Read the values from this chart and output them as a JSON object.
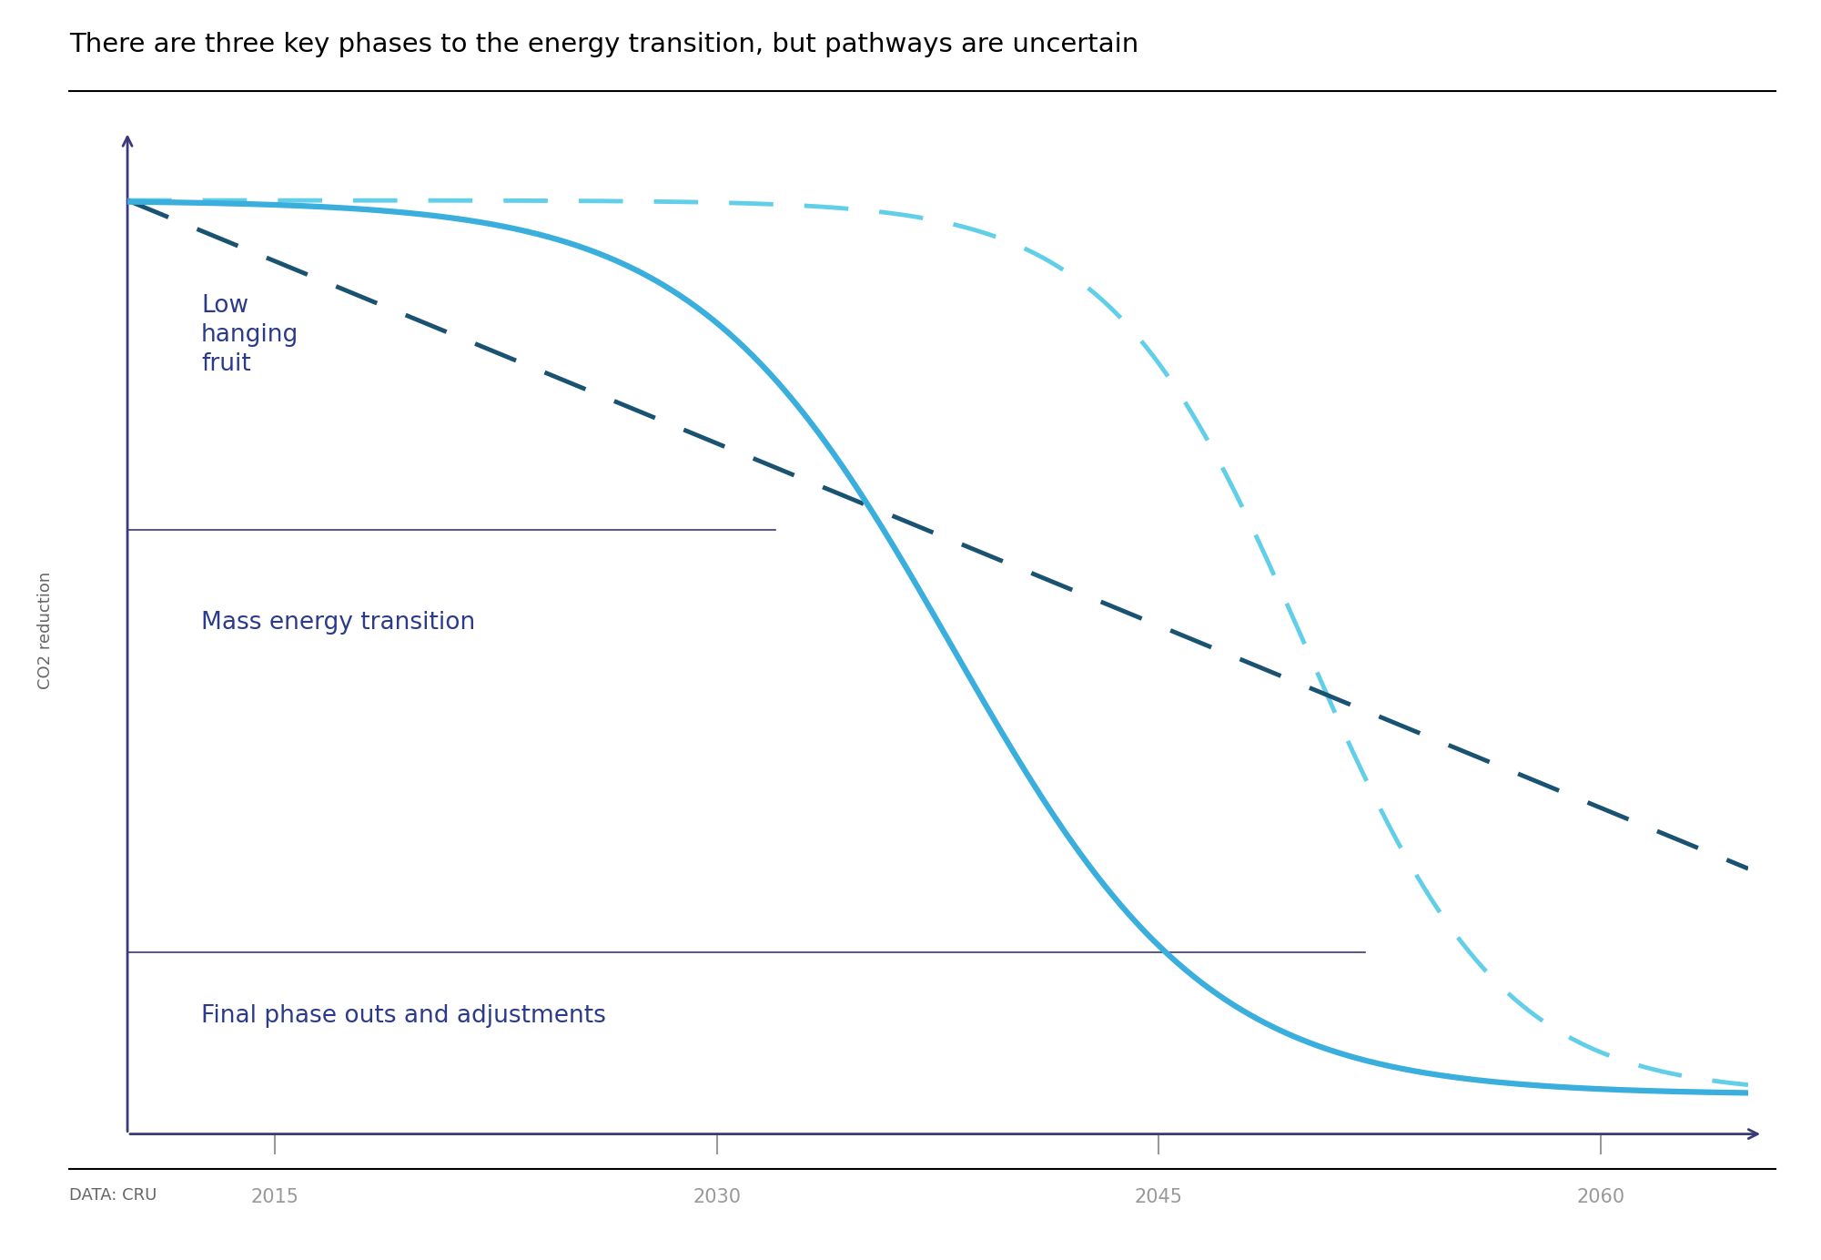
{
  "title": "There are three key phases to the energy transition, but pathways are uncertain",
  "ylabel": "CO2 reduction",
  "data_source": "DATA: CRU",
  "x_ticks": [
    2015,
    2030,
    2045,
    2060
  ],
  "solid_color": "#3aaedc",
  "dashed_light_color": "#62cfe8",
  "dashed_dark_color": "#1a5272",
  "phase_label_color": "#2b3a8a",
  "title_color": "#000000",
  "background_color": "#ffffff",
  "axis_color": "#3a3a7a",
  "title_fontsize": 21,
  "label_fontsize": 19,
  "ylabel_fontsize": 13,
  "datasource_fontsize": 13,
  "tick_fontsize": 15
}
